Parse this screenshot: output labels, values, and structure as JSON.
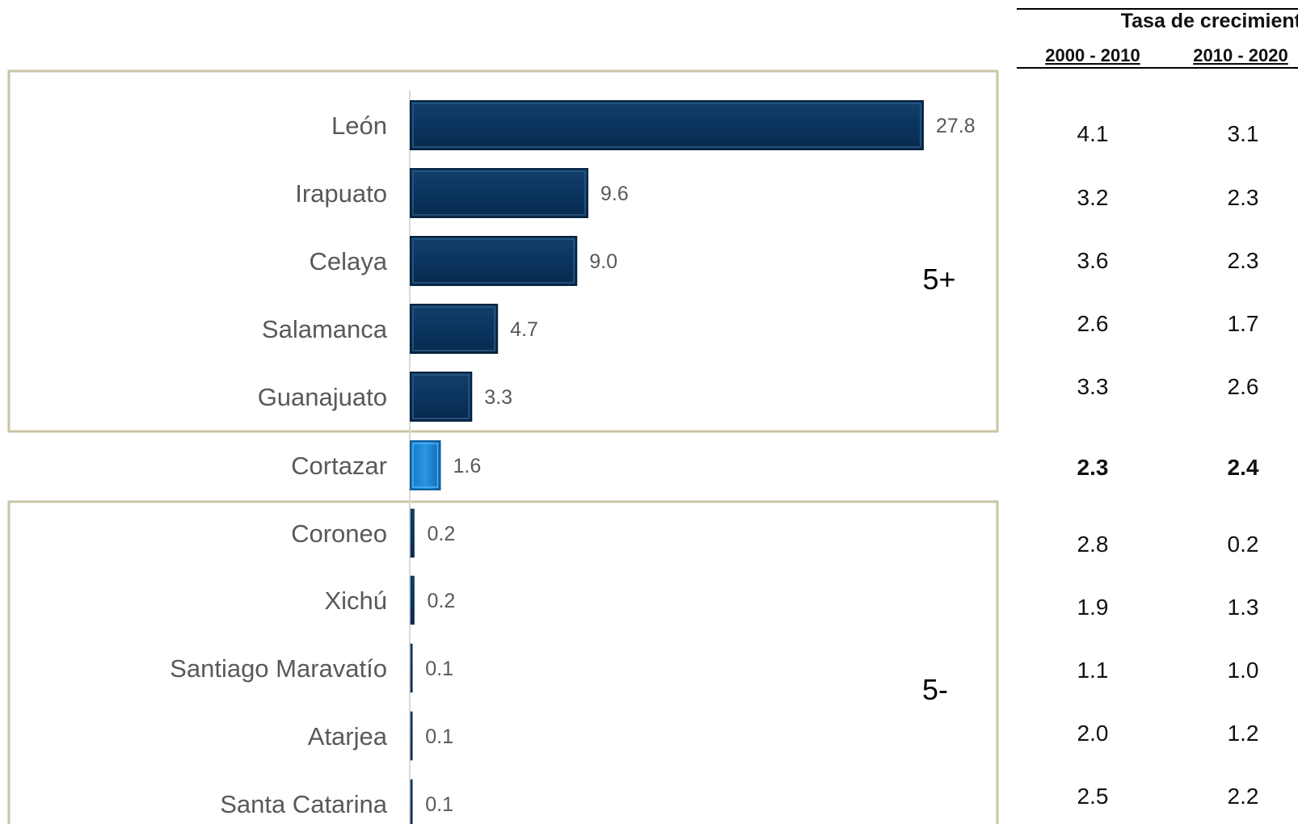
{
  "chart_data": {
    "type": "bar",
    "orientation": "horizontal",
    "categories": [
      "León",
      "Irapuato",
      "Celaya",
      "Salamanca",
      "Guanajuato",
      "Cortazar",
      "Coroneo",
      "Xichú",
      "Santiago Maravatío",
      "Atarjea",
      "Santa Catarina"
    ],
    "values": [
      27.8,
      9.6,
      9.0,
      4.7,
      3.3,
      1.6,
      0.2,
      0.2,
      0.1,
      0.1,
      0.1
    ],
    "value_labels": [
      "27.8",
      "9.6",
      "9.0",
      "4.7",
      "3.3",
      "1.6",
      "0.2",
      "0.2",
      "0.1",
      "0.1",
      "0.1"
    ],
    "highlight_category": "Cortazar",
    "groups": [
      {
        "label": "5+",
        "categories": [
          "León",
          "Irapuato",
          "Celaya",
          "Salamanca",
          "Guanajuato"
        ]
      },
      {
        "label": "5-",
        "categories": [
          "Coroneo",
          "Xichú",
          "Santiago Maravatío",
          "Atarjea",
          "Santa Catarina"
        ]
      }
    ],
    "colors": {
      "bar": "#0d3b66",
      "highlight": "#1f86d6",
      "group_border": "#c9c6a3"
    },
    "xlim": [
      0,
      27.8
    ],
    "grid": false
  },
  "table": {
    "title": "Tasa de crecimiento",
    "columns": [
      "2000 - 2010",
      "2010 - 2020"
    ],
    "rows": [
      [
        "4.1",
        "3.1"
      ],
      [
        "3.2",
        "2.3"
      ],
      [
        "3.6",
        "2.3"
      ],
      [
        "2.6",
        "1.7"
      ],
      [
        "3.3",
        "2.6"
      ],
      [
        "2.3",
        "2.4"
      ],
      [
        "2.8",
        "0.2"
      ],
      [
        "1.9",
        "1.3"
      ],
      [
        "1.1",
        "1.0"
      ],
      [
        "2.0",
        "1.2"
      ],
      [
        "2.5",
        "2.2"
      ]
    ],
    "bold_row": 5
  }
}
